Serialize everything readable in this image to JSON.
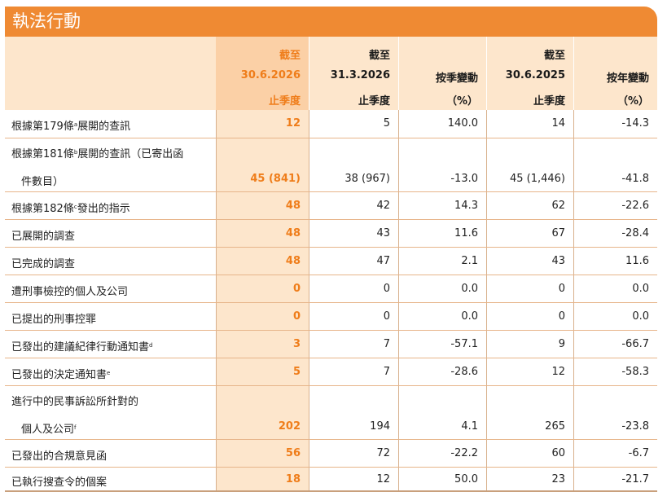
{
  "title": "執法行動",
  "headers": [
    {
      "lines": [
        "截至",
        "30.6.2026",
        "止季度"
      ]
    },
    {
      "lines": [
        "截至",
        "31.3.2026",
        "止季度"
      ]
    },
    {
      "lines": [
        "",
        "按季變動",
        "（%）"
      ]
    },
    {
      "lines": [
        "截至",
        "30.6.2025",
        "止季度"
      ]
    },
    {
      "lines": [
        "",
        "按年變動",
        "（%）"
      ]
    }
  ],
  "rows": [
    {
      "label": [
        "根據第179條",
        "展開的查訊"
      ],
      "sup": "a",
      "values": [
        "12",
        "5",
        "140.0",
        "14",
        "-14.3"
      ]
    },
    {
      "label": [
        "根據第181條",
        "展開的查訊（已寄出函"
      ],
      "sup": "b",
      "label2": "件數目）",
      "values": [
        "45 (841)",
        "38 (967)",
        "-13.0",
        "45 (1,446)",
        "-41.8"
      ]
    },
    {
      "label": [
        "根據第182條",
        "發出的指示"
      ],
      "sup": "c",
      "values": [
        "48",
        "42",
        "14.3",
        "62",
        "-22.6"
      ]
    },
    {
      "label": [
        "已展開的調查",
        ""
      ],
      "sup": "",
      "values": [
        "48",
        "43",
        "11.6",
        "67",
        "-28.4"
      ]
    },
    {
      "label": [
        "已完成的調查",
        ""
      ],
      "sup": "",
      "values": [
        "48",
        "47",
        "2.1",
        "43",
        "11.6"
      ]
    },
    {
      "label": [
        "遭刑事檢控的個人及公司",
        ""
      ],
      "sup": "",
      "values": [
        "0",
        "0",
        "0.0",
        "0",
        "0.0"
      ]
    },
    {
      "label": [
        "已提出的刑事控罪",
        ""
      ],
      "sup": "",
      "values": [
        "0",
        "0",
        "0.0",
        "0",
        "0.0"
      ]
    },
    {
      "label": [
        "已發出的建議紀律行動通知書",
        ""
      ],
      "sup": "d",
      "values": [
        "3",
        "7",
        "-57.1",
        "9",
        "-66.7"
      ]
    },
    {
      "label": [
        "已發出的決定通知書",
        ""
      ],
      "sup": "e",
      "values": [
        "5",
        "7",
        "-28.6",
        "12",
        "-58.3"
      ]
    },
    {
      "label": [
        "進行中的民事訴訟所針對的",
        ""
      ],
      "sup": "",
      "label2": "個人及公司",
      "sup2": "f",
      "values": [
        "202",
        "194",
        "4.1",
        "265",
        "-23.8"
      ]
    },
    {
      "label": [
        "已發出的合規意見函",
        ""
      ],
      "sup": "",
      "values": [
        "56",
        "72",
        "-22.2",
        "60",
        "-6.7"
      ]
    },
    {
      "label": [
        "已執行搜查令的個案",
        ""
      ],
      "sup": "",
      "values": [
        "18",
        "12",
        "50.0",
        "23",
        "-21.7"
      ]
    }
  ]
}
